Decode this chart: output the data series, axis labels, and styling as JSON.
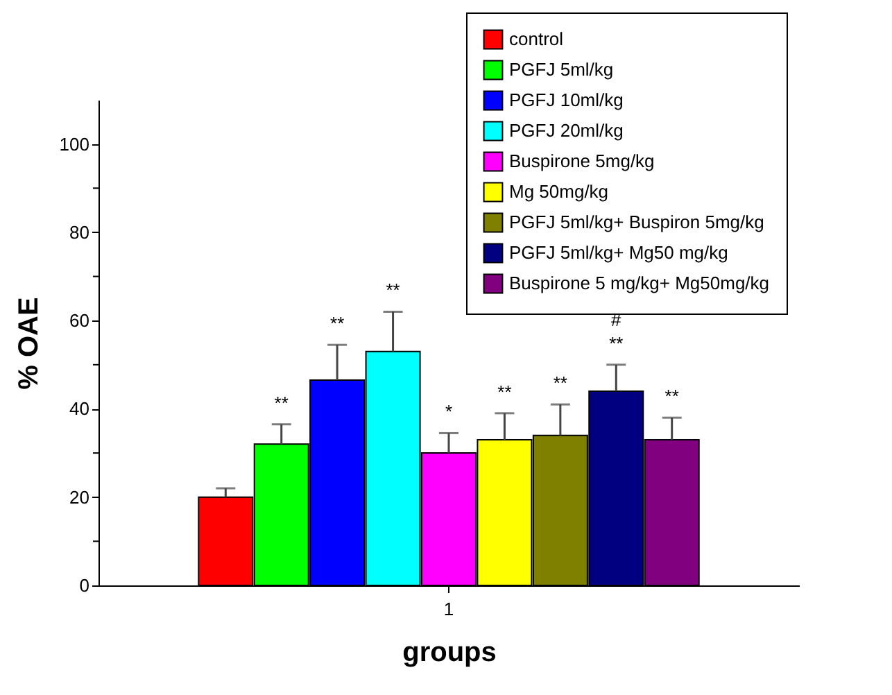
{
  "chart_data": {
    "type": "bar",
    "categories": [
      "1"
    ],
    "xlabel": "groups",
    "ylabel": "% OAE",
    "ylim": [
      0,
      110
    ],
    "yticks": [
      0,
      {
        "value": 10,
        "label": null
      },
      20,
      {
        "value": 30,
        "label": null
      },
      40,
      {
        "value": 50,
        "label": null
      },
      60,
      {
        "value": 70,
        "label": null
      },
      80,
      {
        "value": 90,
        "label": null
      },
      100
    ],
    "grid": false,
    "legend": "top right",
    "series": [
      {
        "name": "control",
        "color": "#ff0000",
        "values": [
          20
        ],
        "errors": [
          [
            20,
            22
          ]
        ],
        "value_labels": [
          null
        ]
      },
      {
        "name": "PGFJ 5ml/kg",
        "color": "#00ff00",
        "values": [
          32
        ],
        "errors": [
          [
            32,
            36.5
          ]
        ],
        "value_labels": [
          "**"
        ]
      },
      {
        "name": "PGFJ 10ml/kg",
        "color": "#0000ff",
        "values": [
          46.5
        ],
        "errors": [
          [
            46.5,
            54.5
          ]
        ],
        "value_labels": [
          "**"
        ]
      },
      {
        "name": "PGFJ 20ml/kg",
        "color": "#00ffff",
        "values": [
          53
        ],
        "errors": [
          [
            53,
            62
          ]
        ],
        "value_labels": [
          "**"
        ]
      },
      {
        "name": "Buspirone 5mg/kg",
        "color": "#ff00ff",
        "values": [
          30
        ],
        "errors": [
          [
            30,
            34.5
          ]
        ],
        "value_labels": [
          "*"
        ]
      },
      {
        "name": "Mg 50mg/kg",
        "color": "#ffff00",
        "values": [
          33
        ],
        "errors": [
          [
            33,
            39
          ]
        ],
        "value_labels": [
          "**"
        ]
      },
      {
        "name": "PGFJ 5ml/kg+ Buspiron 5mg/kg",
        "color": "#808000",
        "values": [
          34
        ],
        "errors": [
          [
            34,
            41
          ]
        ],
        "value_labels": [
          "**"
        ]
      },
      {
        "name": "PGFJ 5ml/kg+ Mg50 mg/kg",
        "color": "#000080",
        "values": [
          44
        ],
        "errors": [
          [
            44,
            50
          ]
        ],
        "value_labels": [
          "#\n**"
        ]
      },
      {
        "name": "Buspirone 5 mg/kg+ Mg50mg/kg",
        "color": "#800080",
        "values": [
          33
        ],
        "errors": [
          [
            33,
            38
          ]
        ],
        "value_labels": [
          "**"
        ]
      }
    ]
  }
}
